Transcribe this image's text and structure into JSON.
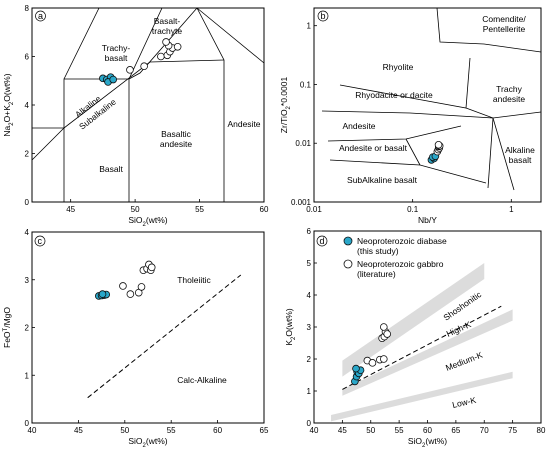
{
  "colors": {
    "this_study_fill": "#2aa7c9",
    "literature_fill": "#ffffff",
    "marker_stroke": "#111111",
    "band_fill": "#dcdcdc"
  },
  "chart_data": [
    {
      "id": "a",
      "type": "scatter",
      "panel_label": "a",
      "xlabel": "SiO₂(wt%)",
      "ylabel": "Na₂O+K₂O(wt%)",
      "xlim": [
        42,
        60
      ],
      "ylim": [
        0,
        8
      ],
      "xticks": [
        45,
        50,
        55,
        60
      ],
      "yticks": [
        0,
        2,
        4,
        6,
        8
      ],
      "grid": false,
      "field_labels": [
        "Basalt-\ntrachyte",
        "Trachy-\nbasalt",
        "Alkaline",
        "Subalkaline",
        "Basaltic\nandesite",
        "Andesite",
        "Basalt"
      ],
      "series": [
        {
          "values": [
            [
              47.5,
              5.1
            ],
            [
              47.8,
              5.05
            ],
            [
              48.1,
              5.15
            ],
            [
              47.9,
              4.95
            ],
            [
              48.3,
              5.05
            ]
          ]
        },
        {
          "values": [
            [
              49.6,
              5.45
            ],
            [
              50.7,
              5.6
            ],
            [
              52.0,
              6.0
            ],
            [
              52.5,
              6.05
            ],
            [
              52.7,
              6.2
            ],
            [
              52.9,
              6.35
            ],
            [
              52.6,
              6.45
            ],
            [
              52.4,
              6.6
            ],
            [
              53.3,
              6.4
            ]
          ]
        }
      ]
    },
    {
      "id": "b",
      "type": "scatter",
      "panel_label": "b",
      "xlabel": "Nb/Y",
      "ylabel": "Zr/TiO₂*0.0001",
      "xscale": "log",
      "yscale": "log",
      "xlim": [
        0.01,
        2
      ],
      "ylim": [
        0.001,
        2
      ],
      "xticks": [
        0.01,
        0.1,
        1
      ],
      "yticks": [
        0.001,
        0.01,
        0.1,
        1
      ],
      "xtick_labels": [
        "0.01",
        "0.1",
        "1"
      ],
      "ytick_labels": [
        "0.001",
        "0.01",
        "0.1",
        "1"
      ],
      "grid": false,
      "field_labels": [
        "Comendite/\nPentellerite",
        "Rhyolite",
        "Rhyodacite or dacite",
        "Trachy\nandesite",
        "Andesite",
        "Andesite or basalt",
        "Alkaline\nbasalt",
        "SubAlkaline basalt"
      ],
      "series": [
        {
          "values": [
            [
              0.155,
              0.0052
            ],
            [
              0.165,
              0.0055
            ],
            [
              0.16,
              0.0058
            ],
            [
              0.17,
              0.006
            ]
          ]
        },
        {
          "values": [
            [
              0.178,
              0.0072
            ],
            [
              0.182,
              0.0078
            ],
            [
              0.186,
              0.0083
            ],
            [
              0.184,
              0.0088
            ],
            [
              0.188,
              0.009
            ],
            [
              0.183,
              0.0094
            ]
          ]
        }
      ]
    },
    {
      "id": "c",
      "type": "scatter",
      "panel_label": "c",
      "xlabel": "SiO₂(wt%)",
      "ylabel": "FeOᵀ/MgO",
      "xlim": [
        40,
        65
      ],
      "ylim": [
        0,
        4
      ],
      "xticks": [
        40,
        45,
        50,
        55,
        60,
        65
      ],
      "yticks": [
        0,
        1,
        2,
        3,
        4
      ],
      "grid": false,
      "field_labels": [
        "Tholeiitic",
        "Calc-Alkaline"
      ],
      "divider": [
        [
          46,
          0.53
        ],
        [
          62.5,
          3.1
        ]
      ],
      "series": [
        {
          "values": [
            [
              47.2,
              2.66
            ],
            [
              47.5,
              2.67
            ],
            [
              47.8,
              2.68
            ],
            [
              48.0,
              2.69
            ],
            [
              47.6,
              2.7
            ]
          ]
        },
        {
          "values": [
            [
              49.8,
              2.87
            ],
            [
              50.6,
              2.7
            ],
            [
              51.5,
              2.73
            ],
            [
              51.8,
              2.85
            ],
            [
              52.0,
              3.2
            ],
            [
              52.4,
              3.23
            ],
            [
              52.8,
              3.2
            ],
            [
              52.6,
              3.32
            ],
            [
              52.9,
              3.26
            ]
          ]
        }
      ]
    },
    {
      "id": "d",
      "type": "scatter",
      "panel_label": "d",
      "xlabel": "SiO₂(wt%)",
      "ylabel": "K₂O(wt%)",
      "xlim": [
        40,
        80
      ],
      "ylim": [
        0,
        6
      ],
      "xticks": [
        40,
        45,
        50,
        55,
        60,
        65,
        70,
        75,
        80
      ],
      "yticks": [
        0,
        1,
        2,
        3,
        4,
        5,
        6
      ],
      "grid": false,
      "legend": {
        "position": "top-left",
        "entries": [
          "Neoproterozoic diabase\n(this study)",
          "Neoproterozoic gabbro\n(literature)"
        ]
      },
      "field_labels": [
        "Shoshonitic",
        "High-K",
        "Medium-K",
        "Low-K"
      ],
      "divider": [
        [
          45,
          1.05
        ],
        [
          73,
          3.65
        ]
      ],
      "series": [
        {
          "name": "Neoproterozoic diabase (this study)",
          "values": [
            [
              47.2,
              1.3
            ],
            [
              47.5,
              1.45
            ],
            [
              47.6,
              1.6
            ],
            [
              47.9,
              1.55
            ],
            [
              48.2,
              1.65
            ],
            [
              47.4,
              1.7
            ]
          ]
        },
        {
          "name": "Neoproterozoic gabbro (literature)",
          "values": [
            [
              49.4,
              1.95
            ],
            [
              50.3,
              1.88
            ],
            [
              51.6,
              1.98
            ],
            [
              52.3,
              2.0
            ],
            [
              52.0,
              2.65
            ],
            [
              52.4,
              2.7
            ],
            [
              52.6,
              2.85
            ],
            [
              52.3,
              3.0
            ],
            [
              52.9,
              2.78
            ]
          ]
        }
      ]
    }
  ]
}
